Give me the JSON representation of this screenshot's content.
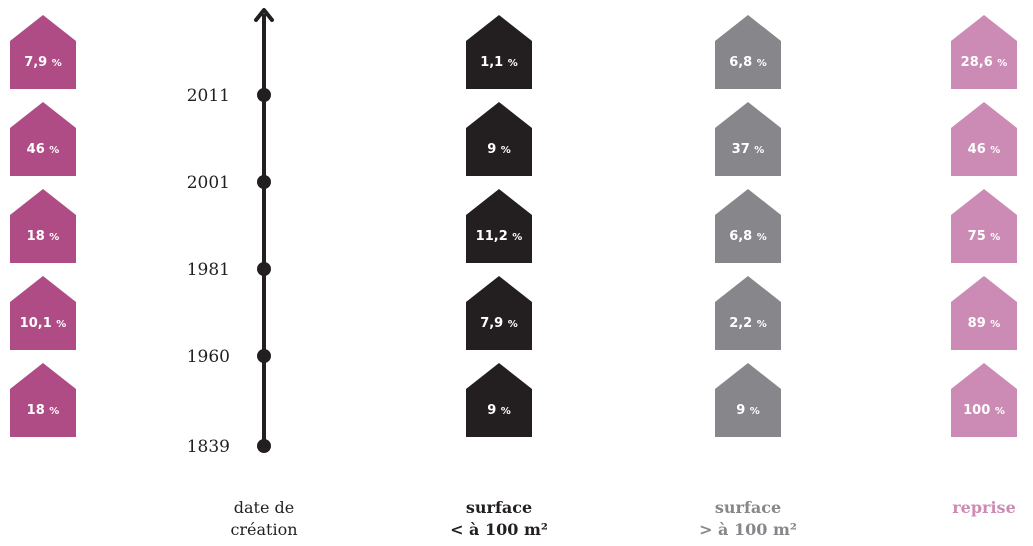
{
  "colors": {
    "column_1": "#b04c85",
    "column_2": "#231f20",
    "column_3": "#87868a",
    "column_4": "#cc8bb4",
    "axis": "#231f20",
    "background": "#ffffff"
  },
  "chart_data": {
    "type": "pictograph",
    "years": [
      "2011",
      "2001",
      "1981",
      "1960",
      "1839"
    ],
    "axis": {
      "direction": "up",
      "arrow": true
    },
    "unit": "%",
    "columns": [
      {
        "key": "column_1",
        "label_line1": "",
        "label_line2": "",
        "values": [
          "7,9",
          "46",
          "18",
          "10,1",
          "18"
        ]
      },
      {
        "key": "column_2",
        "label_line1": "surface",
        "label_line2": "< à 100 m²",
        "values": [
          "1,1",
          "9",
          "11,2",
          "7,9",
          "9"
        ]
      },
      {
        "key": "column_3",
        "label_line1": "surface",
        "label_line2": "> à 100 m²",
        "values": [
          "6,8",
          "37",
          "6,8",
          "2,2",
          "9"
        ]
      },
      {
        "key": "column_4",
        "label_line1": "reprise",
        "label_line2": "",
        "values": [
          "28,6",
          "46",
          "75",
          "89",
          "100"
        ]
      }
    ],
    "axis_title_line1": "date de",
    "axis_title_line2": "création"
  }
}
